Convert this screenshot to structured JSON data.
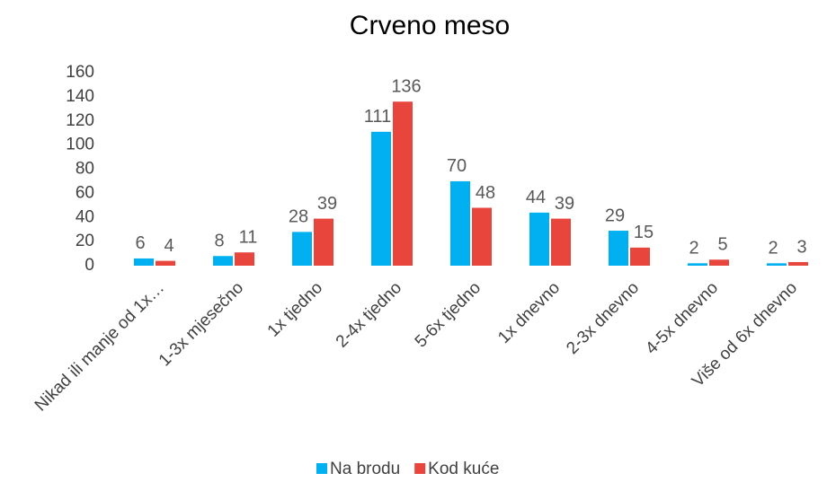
{
  "chart_data": {
    "type": "bar",
    "title": "Crveno meso",
    "categories": [
      "Nikad ili manje od 1x…",
      "1-3x mjesečno",
      "1x tjedno",
      "2-4x tjedno",
      "5-6x tjedno",
      "1x dnevno",
      "2-3x dnevno",
      "4-5x dnevno",
      "Više od 6x dnevno"
    ],
    "series": [
      {
        "name": "Na brodu",
        "color": "#00b0f0",
        "values": [
          6,
          8,
          28,
          111,
          70,
          44,
          29,
          2,
          2
        ]
      },
      {
        "name": "Kod kuće",
        "color": "#e8453c",
        "values": [
          4,
          11,
          39,
          136,
          48,
          39,
          15,
          5,
          3
        ]
      }
    ],
    "ylim": [
      0,
      160
    ],
    "yticks": [
      0,
      20,
      40,
      60,
      80,
      100,
      120,
      140,
      160
    ],
    "legend": "bottom"
  }
}
